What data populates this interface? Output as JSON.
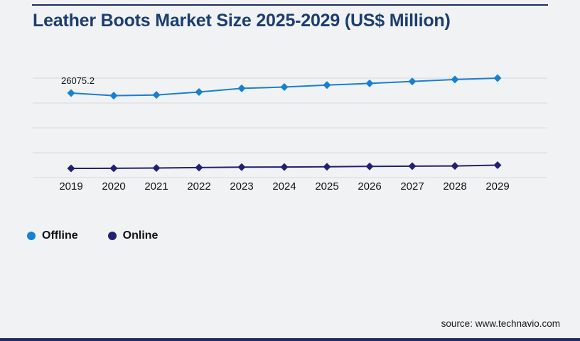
{
  "title": "Leather Boots Market Size 2025-2029 (US$ Million)",
  "footer": {
    "source": "source: www.technavio.com"
  },
  "colors": {
    "background": "#f1f2f4",
    "title": "#1c3d6e",
    "grid": "#d8d8d8",
    "axis_text": "#111111",
    "rule": "#1e2e5f",
    "offline": "#1780d0",
    "online": "#23206f"
  },
  "chart_data": {
    "type": "line",
    "title": "Leather Boots Market Size 2025-2029 (US$ Million)",
    "categories": [
      "2019",
      "2020",
      "2021",
      "2022",
      "2023",
      "2024",
      "2025",
      "2026",
      "2027",
      "2028",
      "2029"
    ],
    "series": [
      {
        "name": "Offline",
        "color": "#1780d0",
        "values": [
          26075.2,
          25300,
          25500,
          26400,
          27500,
          27900,
          28500,
          29000,
          29600,
          30200,
          30600
        ]
      },
      {
        "name": "Online",
        "color": "#23206f",
        "values": [
          3230,
          3250,
          3330,
          3480,
          3600,
          3650,
          3720,
          3830,
          3900,
          3970,
          4200
        ]
      }
    ],
    "data_labels": [
      {
        "series": "Offline",
        "category": "2019",
        "text": "26075.2"
      }
    ],
    "xlabel": "",
    "ylabel": "",
    "y_axis_labels_visible": false,
    "grid": "horizontal",
    "marker": "diamond",
    "legend_position": "bottom-left",
    "legend": [
      "Offline",
      "Online"
    ]
  }
}
